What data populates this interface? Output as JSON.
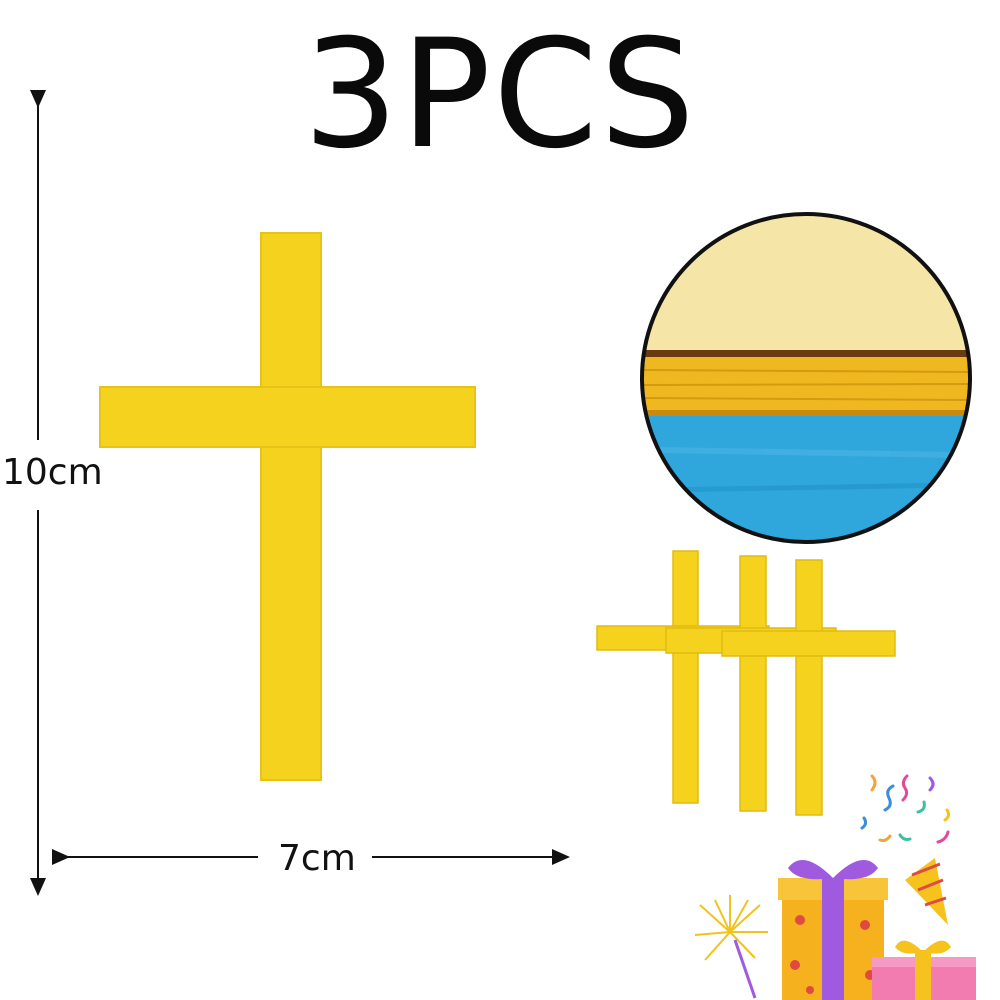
{
  "product": {
    "quantity_label": "3PCS",
    "height_label": "10cm",
    "width_label": "7cm"
  },
  "colors": {
    "cross_yellow": "#f5d21e",
    "cross_edge": "#e2bb10",
    "wood_band": "#f0b820",
    "blue_base": "#2fa6dc",
    "text": "#0a0a0a"
  },
  "icons": {
    "gift": "gift-box-icon",
    "party_horn": "party-horn-icon",
    "sparkler": "sparkler-icon",
    "confetti": "confetti-icon"
  }
}
